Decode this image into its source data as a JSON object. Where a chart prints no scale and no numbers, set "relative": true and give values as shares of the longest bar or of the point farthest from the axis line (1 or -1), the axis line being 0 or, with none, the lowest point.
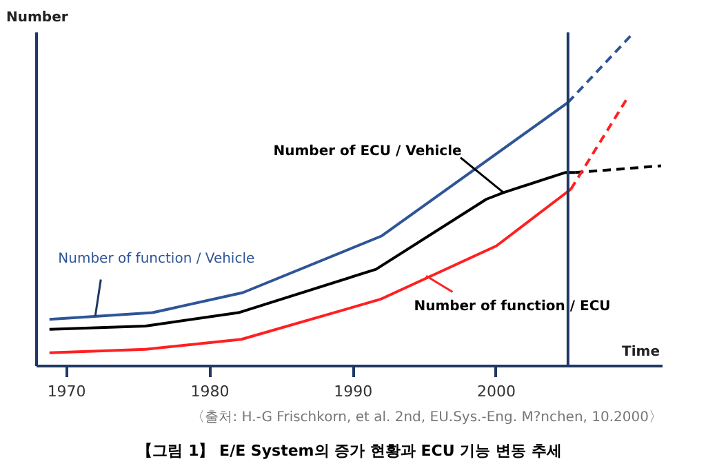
{
  "chart_data": {
    "type": "line",
    "relative": true,
    "title": "【그림 1】 E/E System의 증가 현황과 ECU 기능 변동 추세",
    "xlabel": "Time",
    "ylabel": "Number",
    "xlim": [
      1967.9,
      2011.6
    ],
    "xticks": [
      1970,
      1980,
      1990,
      2000
    ],
    "grid": false,
    "marker": "none",
    "series": [
      {
        "color": "#2f5597",
        "line_style": "solid",
        "x": [
          1968.8,
          1976.0,
          1982.3,
          1992.0,
          2005.0
        ],
        "values": [
          0.14,
          0.16,
          0.22,
          0.39,
          0.79
        ]
      },
      {
        "color": "#2f5597",
        "line_style": "dashed",
        "x": [
          2005.0,
          2009.6
        ],
        "values": [
          0.79,
          1.0
        ]
      },
      {
        "color": "#000000",
        "line_style": "solid",
        "x": [
          1968.8,
          1975.5,
          1982.0,
          1991.6,
          1999.3,
          2000.5,
          2004.8,
          2005.5
        ],
        "values": [
          0.11,
          0.12,
          0.16,
          0.29,
          0.5,
          0.52,
          0.58,
          0.58
        ]
      },
      {
        "color": "#000000",
        "line_style": "dashed",
        "x": [
          2005.5,
          2011.5
        ],
        "values": [
          0.58,
          0.6
        ]
      },
      {
        "color": "#ff2020",
        "line_style": "solid",
        "x": [
          1968.8,
          1975.5,
          1982.2,
          1991.9,
          2000.0,
          2005.2
        ],
        "values": [
          0.04,
          0.05,
          0.08,
          0.2,
          0.36,
          0.53
        ]
      },
      {
        "color": "#ff2020",
        "line_style": "dashed",
        "x": [
          2005.2,
          2009.1
        ],
        "values": [
          0.53,
          0.8
        ]
      }
    ],
    "ref_lines": [
      {
        "axis": "x",
        "value": 2005,
        "color": "#1f3864"
      }
    ],
    "annotations": [
      {
        "text": "Number of function / Vehicle",
        "x": 1972.0,
        "y": 0.15
      },
      {
        "text": "Number of ECU / Vehicle",
        "x": 2000.5,
        "y": 0.52
      },
      {
        "text": "Number of function / ECU",
        "x": 1995.1,
        "y": 0.27
      },
      "〈출처: H.-G Frischkorn, et al. 2nd, EU.Sys.-Eng. M?nchen, 10.2000〉"
    ]
  }
}
